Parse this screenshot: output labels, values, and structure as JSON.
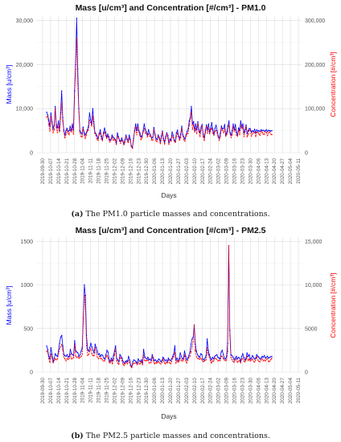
{
  "chart_data": [
    {
      "type": "line",
      "title": "Mass [u/cm³] and Concentration [#/cm³] - PM1.0",
      "xlabel": "Days",
      "ylabel": "Mass [u/cm³]",
      "y2label": "Concentration [#/cm³]",
      "ylim": [
        0,
        31000
      ],
      "y2lim": [
        0,
        310000
      ],
      "yticks": [
        "0",
        "10,000",
        "20,000",
        "30,000"
      ],
      "y2ticks": [
        "0",
        "100,000",
        "200,000",
        "300,000"
      ],
      "ytick_values": [
        0,
        10000,
        20000,
        30000
      ],
      "xticks": [
        "2019-09-30",
        "2019-10-07",
        "2019-10-14",
        "2019-10-21",
        "2019-10-28",
        "2019-11-04",
        "2019-11-11",
        "2019-11-18",
        "2019-11-25",
        "2019-12-02",
        "2019-12-09",
        "2019-12-16",
        "2019-12-23",
        "2019-12-30",
        "2020-01-06",
        "2020-01-13",
        "2020-01-20",
        "2020-01-27",
        "2020-02-03",
        "2020-02-10",
        "2020-02-17",
        "2020-02-24",
        "2020-03-02",
        "2020-03-09",
        "2020-03-16",
        "2020-03-23",
        "2020-03-30",
        "2020-04-06",
        "2020-04-13",
        "2020-04-20",
        "2020-04-27",
        "2020-05-04",
        "2020-05-11"
      ],
      "grid": true,
      "series": [
        {
          "color": "#0000ff",
          "axis": "left",
          "x": [
            0,
            1,
            2,
            3,
            4,
            5,
            6,
            7,
            8,
            9,
            10,
            11,
            12,
            13,
            14,
            15,
            16,
            17,
            18,
            19,
            20,
            21,
            22,
            23,
            24,
            25,
            26,
            27,
            28,
            29,
            30,
            31,
            32,
            33,
            34,
            35,
            36,
            37,
            38,
            39,
            40,
            41,
            42,
            43,
            44,
            45,
            46,
            47,
            48,
            49,
            50,
            51,
            52,
            53,
            54,
            55,
            56,
            57,
            58,
            59,
            60,
            61,
            62,
            63,
            64,
            65,
            66,
            67,
            68,
            69,
            70,
            71,
            72,
            73,
            74,
            75,
            76,
            77,
            78,
            79,
            80,
            81,
            82,
            83,
            84,
            85,
            86,
            87,
            88,
            89,
            90,
            91,
            92,
            93,
            94,
            95,
            96,
            97,
            98,
            99,
            100,
            101,
            102,
            103,
            104,
            105,
            106,
            107,
            108,
            109,
            110,
            111,
            112,
            113,
            114,
            115,
            116,
            117,
            118,
            119,
            120,
            121,
            122,
            123,
            124,
            125,
            126,
            127,
            128,
            129,
            130,
            131,
            132,
            133,
            134,
            135,
            136,
            137,
            138,
            139,
            140,
            141,
            142,
            143,
            144,
            145,
            146,
            147,
            148,
            149,
            150,
            151,
            152,
            153,
            154,
            155,
            156,
            157,
            158,
            159,
            160,
            161,
            162,
            163,
            164,
            165,
            166,
            167,
            168,
            169,
            170,
            171,
            172,
            173,
            174,
            175,
            176,
            177,
            178,
            179,
            180,
            181,
            182,
            183,
            184,
            185,
            186,
            187,
            188,
            189,
            190,
            191,
            192,
            193,
            194,
            195,
            196,
            197,
            198,
            199,
            200,
            201,
            202,
            203,
            204,
            205,
            206,
            207,
            208,
            209,
            210
          ],
          "values": [
            9200,
            8600,
            7400,
            6000,
            9000,
            7000,
            5400,
            6200,
            10500,
            6400,
            5600,
            7200,
            5000,
            9000,
            14000,
            8000,
            5200,
            4000,
            5000,
            5500,
            4800,
            5000,
            6000,
            5000,
            6500,
            5200,
            14000,
            20000,
            30500,
            19000,
            10000,
            5000,
            4500,
            4200,
            5800,
            4500,
            4000,
            4500,
            5200,
            6000,
            9000,
            7500,
            6500,
            10000,
            7000,
            4600,
            4300,
            3800,
            3200,
            4300,
            5200,
            3800,
            3000,
            4500,
            5600,
            4600,
            3500,
            4200,
            3600,
            2800,
            3000,
            4000,
            3500,
            3300,
            3000,
            2200,
            4500,
            3600,
            2800,
            2600,
            3300,
            2700,
            2000,
            2900,
            4000,
            3100,
            2700,
            4000,
            3000,
            1500,
            1200,
            3200,
            5000,
            6500,
            5000,
            6500,
            5000,
            4500,
            3600,
            3800,
            5000,
            6500,
            5300,
            4700,
            4000,
            5200,
            4300,
            4000,
            3300,
            3500,
            5700,
            4200,
            3200,
            3000,
            4000,
            3500,
            2500,
            3800,
            4900,
            3200,
            2400,
            3600,
            4500,
            3900,
            2300,
            3100,
            2800,
            4700,
            4000,
            2800,
            2600,
            4500,
            5100,
            3800,
            3300,
            4200,
            6000,
            4100,
            3500,
            3100,
            4000,
            4800,
            5400,
            7200,
            8000,
            10500,
            6500,
            7000,
            5000,
            6500,
            5200,
            7000,
            5300,
            4500,
            5800,
            6400,
            4200,
            3400,
            5000,
            6300,
            5200,
            6500,
            4600,
            5600,
            6800,
            5200,
            4200,
            5500,
            6200,
            5000,
            3800,
            3300,
            4500,
            6000,
            5400,
            5500,
            6400,
            4000,
            4600,
            6000,
            7200,
            4600,
            4000,
            5000,
            6500,
            5200,
            6400,
            4700,
            4000,
            5600,
            5000,
            7200,
            5800,
            6500,
            4500,
            5200,
            6300,
            4300,
            5000,
            5500,
            5400,
            4600,
            5000,
            4800,
            5300,
            4500,
            5200,
            4900,
            5000,
            4800,
            5200,
            5000,
            5100,
            4900,
            5000,
            5200,
            4800,
            5100,
            5000,
            4900,
            5000
          ]
        },
        {
          "color": "#ff0000",
          "axis": "right"
        }
      ]
    },
    {
      "type": "line",
      "title": "Mass [u/cm³] and Concentration [#/cm³] - PM2.5",
      "xlabel": "Days",
      "ylabel": "Mass [u/cm³]",
      "y2label": "Concentration [#/cm³]",
      "ylim": [
        0,
        1550
      ],
      "y2lim": [
        0,
        15500
      ],
      "yticks": [
        "0",
        "500",
        "1000",
        "1500"
      ],
      "y2ticks": [
        "0",
        "5000",
        "10,000",
        "15,000"
      ],
      "ytick_values": [
        0,
        500,
        1000,
        1500
      ],
      "xticks": [
        "2019-09-30",
        "2019-10-07",
        "2019-10-14",
        "2019-10-21",
        "2019-10-28",
        "2019-11-04",
        "2019-11-11",
        "2019-11-18",
        "2019-11-25",
        "2019-12-02",
        "2019-12-09",
        "2019-12-16",
        "2019-12-23",
        "2019-12-30",
        "2020-01-06",
        "2020-01-13",
        "2020-01-20",
        "2020-01-27",
        "2020-02-03",
        "2020-02-10",
        "2020-02-17",
        "2020-02-24",
        "2020-03-02",
        "2020-03-09",
        "2020-03-16",
        "2020-03-23",
        "2020-03-30",
        "2020-04-06",
        "2020-04-13",
        "2020-04-20",
        "2020-04-27",
        "2020-05-04",
        "2020-05-11"
      ],
      "grid": true,
      "series": [
        {
          "color": "#0000ff",
          "axis": "left"
        },
        {
          "color": "#ff0000",
          "axis": "right"
        }
      ]
    }
  ],
  "captions": [
    {
      "label": "(a)",
      "text": " The PM1.0 particle masses and concentrations."
    },
    {
      "label": "(b)",
      "text": " The PM2.5 particle masses and concentrations."
    }
  ]
}
